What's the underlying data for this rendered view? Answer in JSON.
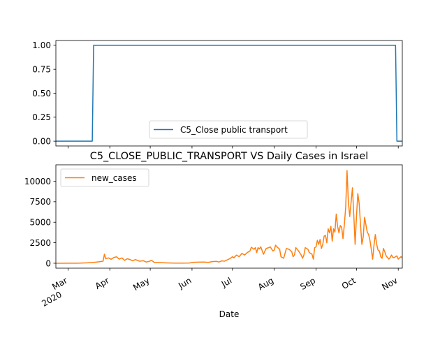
{
  "chart_data": [
    {
      "type": "line",
      "title": "",
      "xlabel": "",
      "ylabel": "",
      "ylim": [
        -0.05,
        1.05
      ],
      "yticks": [
        "0.00",
        "0.25",
        "0.50",
        "0.75",
        "1.00"
      ],
      "legend_position": "lower-center",
      "series": [
        {
          "name": "C5_Close public transport",
          "color": "#1f77b4",
          "points": [
            [
              "2020-02-21",
              0
            ],
            [
              "2020-03-19",
              0
            ],
            [
              "2020-03-20",
              1
            ],
            [
              "2020-10-30",
              1
            ],
            [
              "2020-10-31",
              0
            ],
            [
              "2020-11-04",
              0
            ]
          ]
        }
      ]
    },
    {
      "type": "line",
      "title": "C5_CLOSE_PUBLIC_TRANSPORT VS Daily Cases in Israel",
      "xlabel": "Date",
      "ylabel": "",
      "ylim": [
        -600,
        12000
      ],
      "yticks": [
        "0",
        "2500",
        "5000",
        "7500",
        "10000"
      ],
      "xticks": [
        {
          "date": "2020-03-01",
          "label": "Mar",
          "sublabel": "2020"
        },
        {
          "date": "2020-04-01",
          "label": "Apr"
        },
        {
          "date": "2020-05-01",
          "label": "May"
        },
        {
          "date": "2020-06-01",
          "label": "Jun"
        },
        {
          "date": "2020-07-01",
          "label": "Jul"
        },
        {
          "date": "2020-08-01",
          "label": "Aug"
        },
        {
          "date": "2020-09-01",
          "label": "Sep"
        },
        {
          "date": "2020-10-01",
          "label": "Oct"
        },
        {
          "date": "2020-11-01",
          "label": "Nov"
        }
      ],
      "legend_position": "upper-left",
      "series": [
        {
          "name": "new_cases",
          "color": "#ff7f0e",
          "points": [
            [
              "2020-02-21",
              1
            ],
            [
              "2020-03-01",
              3
            ],
            [
              "2020-03-08",
              10
            ],
            [
              "2020-03-15",
              50
            ],
            [
              "2020-03-20",
              100
            ],
            [
              "2020-03-24",
              180
            ],
            [
              "2020-03-27",
              250
            ],
            [
              "2020-03-28",
              1100
            ],
            [
              "2020-03-29",
              550
            ],
            [
              "2020-03-31",
              650
            ],
            [
              "2020-04-02",
              480
            ],
            [
              "2020-04-04",
              700
            ],
            [
              "2020-04-06",
              780
            ],
            [
              "2020-04-08",
              500
            ],
            [
              "2020-04-10",
              650
            ],
            [
              "2020-04-12",
              350
            ],
            [
              "2020-04-14",
              550
            ],
            [
              "2020-04-16",
              450
            ],
            [
              "2020-04-18",
              300
            ],
            [
              "2020-04-20",
              450
            ],
            [
              "2020-04-23",
              250
            ],
            [
              "2020-04-26",
              300
            ],
            [
              "2020-04-28",
              150
            ],
            [
              "2020-04-30",
              220
            ],
            [
              "2020-05-02",
              350
            ],
            [
              "2020-05-04",
              100
            ],
            [
              "2020-05-08",
              80
            ],
            [
              "2020-05-12",
              50
            ],
            [
              "2020-05-16",
              30
            ],
            [
              "2020-05-20",
              20
            ],
            [
              "2020-05-25",
              15
            ],
            [
              "2020-05-30",
              30
            ],
            [
              "2020-06-02",
              110
            ],
            [
              "2020-06-06",
              130
            ],
            [
              "2020-06-10",
              140
            ],
            [
              "2020-06-13",
              100
            ],
            [
              "2020-06-16",
              200
            ],
            [
              "2020-06-19",
              230
            ],
            [
              "2020-06-21",
              150
            ],
            [
              "2020-06-23",
              290
            ],
            [
              "2020-06-25",
              250
            ],
            [
              "2020-06-27",
              400
            ],
            [
              "2020-06-29",
              550
            ],
            [
              "2020-07-01",
              800
            ],
            [
              "2020-07-02",
              650
            ],
            [
              "2020-07-04",
              1000
            ],
            [
              "2020-07-06",
              800
            ],
            [
              "2020-07-08",
              1200
            ],
            [
              "2020-07-10",
              1000
            ],
            [
              "2020-07-12",
              1300
            ],
            [
              "2020-07-14",
              1500
            ],
            [
              "2020-07-15",
              1950
            ],
            [
              "2020-07-17",
              1700
            ],
            [
              "2020-07-18",
              1900
            ],
            [
              "2020-07-19",
              1300
            ],
            [
              "2020-07-20",
              1900
            ],
            [
              "2020-07-21",
              1750
            ],
            [
              "2020-07-22",
              2000
            ],
            [
              "2020-07-24",
              1100
            ],
            [
              "2020-07-26",
              1800
            ],
            [
              "2020-07-28",
              1900
            ],
            [
              "2020-07-29",
              2000
            ],
            [
              "2020-07-31",
              1500
            ],
            [
              "2020-08-01",
              1600
            ],
            [
              "2020-08-02",
              2200
            ],
            [
              "2020-08-03",
              2000
            ],
            [
              "2020-08-05",
              1700
            ],
            [
              "2020-08-06",
              800
            ],
            [
              "2020-08-08",
              600
            ],
            [
              "2020-08-10",
              1800
            ],
            [
              "2020-08-12",
              1700
            ],
            [
              "2020-08-14",
              1400
            ],
            [
              "2020-08-15",
              800
            ],
            [
              "2020-08-16",
              1000
            ],
            [
              "2020-08-17",
              1900
            ],
            [
              "2020-08-19",
              1500
            ],
            [
              "2020-08-21",
              1000
            ],
            [
              "2020-08-22",
              600
            ],
            [
              "2020-08-23",
              1000
            ],
            [
              "2020-08-24",
              1900
            ],
            [
              "2020-08-26",
              1700
            ],
            [
              "2020-08-27",
              1300
            ],
            [
              "2020-08-29",
              1100
            ],
            [
              "2020-08-30",
              500
            ],
            [
              "2020-08-31",
              1900
            ],
            [
              "2020-09-01",
              2000
            ],
            [
              "2020-09-02",
              2800
            ],
            [
              "2020-09-03",
              2300
            ],
            [
              "2020-09-04",
              2900
            ],
            [
              "2020-09-05",
              1800
            ],
            [
              "2020-09-06",
              2300
            ],
            [
              "2020-09-07",
              3300
            ],
            [
              "2020-09-08",
              3400
            ],
            [
              "2020-09-09",
              2500
            ],
            [
              "2020-09-10",
              4200
            ],
            [
              "2020-09-11",
              3700
            ],
            [
              "2020-09-12",
              4500
            ],
            [
              "2020-09-13",
              2700
            ],
            [
              "2020-09-14",
              4200
            ],
            [
              "2020-09-15",
              3800
            ],
            [
              "2020-09-16",
              6000
            ],
            [
              "2020-09-17",
              4500
            ],
            [
              "2020-09-18",
              3700
            ],
            [
              "2020-09-19",
              4600
            ],
            [
              "2020-09-20",
              4400
            ],
            [
              "2020-09-21",
              3000
            ],
            [
              "2020-09-22",
              4700
            ],
            [
              "2020-09-23",
              6800
            ],
            [
              "2020-09-24",
              11300
            ],
            [
              "2020-09-25",
              7500
            ],
            [
              "2020-09-26",
              5700
            ],
            [
              "2020-09-27",
              7400
            ],
            [
              "2020-09-28",
              9200
            ],
            [
              "2020-09-29",
              5900
            ],
            [
              "2020-09-30",
              2300
            ],
            [
              "2020-10-01",
              5700
            ],
            [
              "2020-10-02",
              8500
            ],
            [
              "2020-10-03",
              7300
            ],
            [
              "2020-10-04",
              4700
            ],
            [
              "2020-10-05",
              2300
            ],
            [
              "2020-10-06",
              3200
            ],
            [
              "2020-10-07",
              5600
            ],
            [
              "2020-10-08",
              4700
            ],
            [
              "2020-10-09",
              3800
            ],
            [
              "2020-10-10",
              3500
            ],
            [
              "2020-10-11",
              2800
            ],
            [
              "2020-10-12",
              1700
            ],
            [
              "2020-10-13",
              500
            ],
            [
              "2020-10-14",
              2200
            ],
            [
              "2020-10-15",
              3500
            ],
            [
              "2020-10-16",
              2300
            ],
            [
              "2020-10-17",
              1600
            ],
            [
              "2020-10-18",
              1500
            ],
            [
              "2020-10-19",
              800
            ],
            [
              "2020-10-20",
              600
            ],
            [
              "2020-10-21",
              1800
            ],
            [
              "2020-10-22",
              1400
            ],
            [
              "2020-10-23",
              900
            ],
            [
              "2020-10-24",
              700
            ],
            [
              "2020-10-25",
              500
            ],
            [
              "2020-10-26",
              700
            ],
            [
              "2020-10-27",
              1000
            ],
            [
              "2020-10-28",
              700
            ],
            [
              "2020-10-29",
              700
            ],
            [
              "2020-10-30",
              800
            ],
            [
              "2020-10-31",
              900
            ],
            [
              "2020-11-01",
              500
            ],
            [
              "2020-11-02",
              650
            ],
            [
              "2020-11-03",
              800
            ],
            [
              "2020-11-04",
              650
            ]
          ]
        }
      ]
    }
  ]
}
